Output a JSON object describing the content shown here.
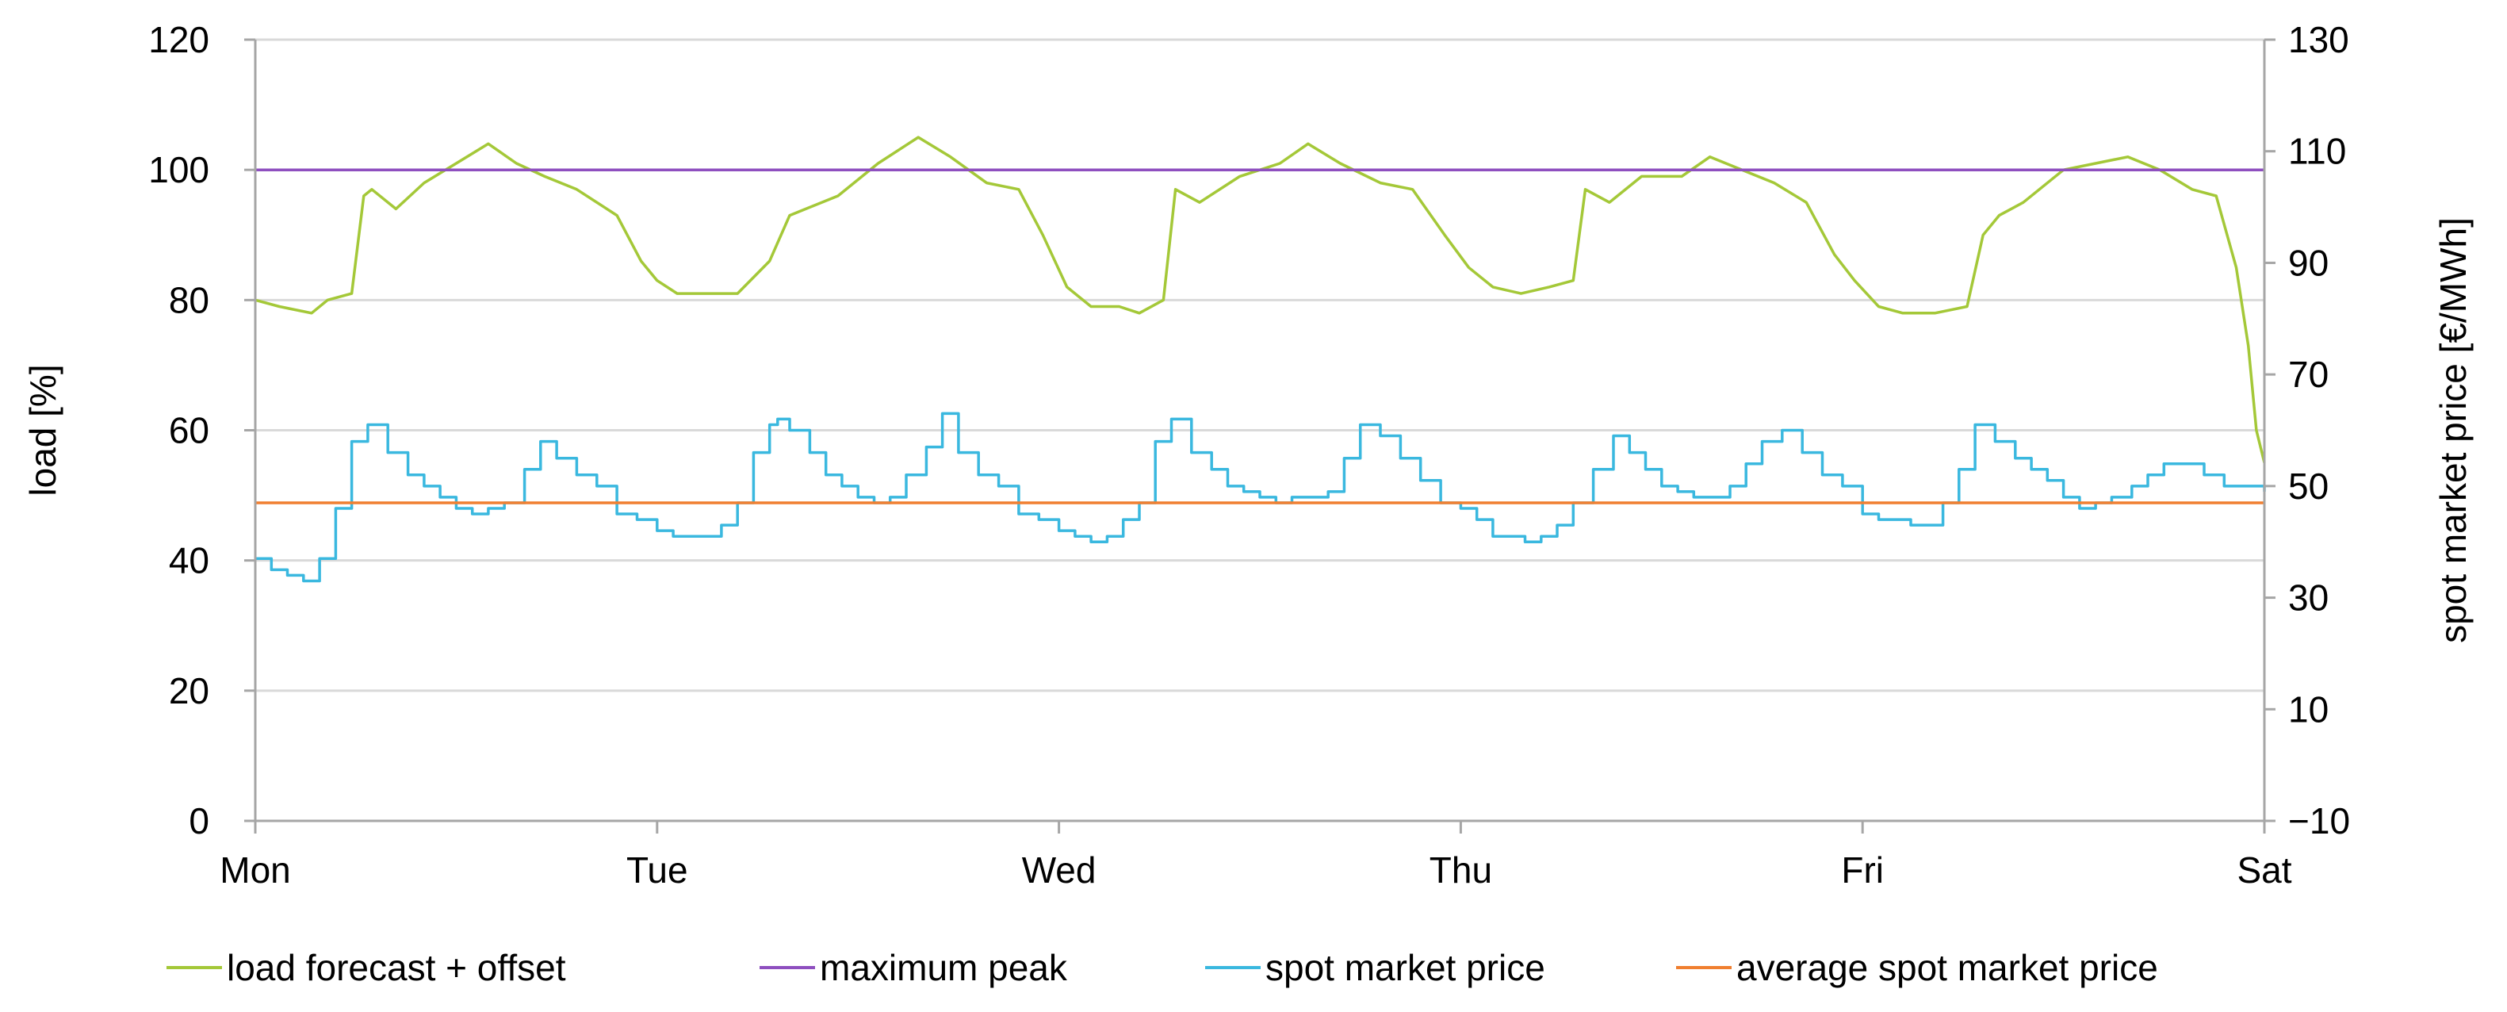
{
  "chart_data": {
    "type": "line",
    "title": "",
    "x_categories": [
      "Mon",
      "Tue",
      "Wed",
      "Thu",
      "Fri",
      "Sat"
    ],
    "x_domain": [
      0,
      5
    ],
    "y_left": {
      "label": "load [%]",
      "range": [
        0,
        120
      ],
      "ticks": [
        "0",
        "20",
        "40",
        "60",
        "80",
        "100",
        "120"
      ]
    },
    "y_right": {
      "label": "spot market price [€/MWh]",
      "range": [
        -10,
        130
      ],
      "ticks": [
        "−10",
        "10",
        "30",
        "50",
        "70",
        "90",
        "110",
        "130"
      ]
    },
    "grid": true,
    "legend_position": "bottom",
    "colors": {
      "load": "#a4c838",
      "peak": "#8e4fbf",
      "price": "#3ab8df",
      "avg": "#f07f30",
      "grid": "#d9d9d9",
      "axis": "#a6a6a6"
    },
    "series": [
      {
        "name": "load forecast + offset",
        "axis": "left",
        "color_key": "load",
        "x": [
          0,
          0.06,
          0.14,
          0.18,
          0.24,
          0.27,
          0.29,
          0.35,
          0.42,
          0.5,
          0.58,
          0.65,
          0.72,
          0.8,
          0.9,
          0.96,
          1.0,
          1.05,
          1.12,
          1.2,
          1.28,
          1.33,
          1.37,
          1.45,
          1.55,
          1.65,
          1.73,
          1.82,
          1.9,
          1.96,
          2.02,
          2.08,
          2.15,
          2.2,
          2.26,
          2.29,
          2.35,
          2.45,
          2.55,
          2.62,
          2.7,
          2.8,
          2.88,
          2.96,
          3.02,
          3.08,
          3.15,
          3.22,
          3.28,
          3.31,
          3.37,
          3.45,
          3.55,
          3.62,
          3.7,
          3.78,
          3.86,
          3.93,
          3.98,
          4.04,
          4.1,
          4.18,
          4.26,
          4.3,
          4.34,
          4.4,
          4.5,
          4.58,
          4.66,
          4.74,
          4.82,
          4.88,
          4.93,
          4.96,
          4.98,
          5.0
        ],
        "values": [
          80,
          79,
          78,
          80,
          81,
          96,
          97,
          94,
          98,
          101,
          104,
          101,
          99,
          97,
          93,
          86,
          83,
          81,
          81,
          81,
          86,
          93,
          94,
          96,
          101,
          105,
          102,
          98,
          97,
          90,
          82,
          79,
          79,
          78,
          80,
          97,
          95,
          99,
          101,
          104,
          101,
          98,
          97,
          90,
          85,
          82,
          81,
          82,
          83,
          97,
          95,
          99,
          99,
          102,
          100,
          98,
          95,
          87,
          83,
          79,
          78,
          78,
          79,
          90,
          93,
          95,
          100,
          101,
          102,
          100,
          97,
          96,
          85,
          73,
          60,
          55
        ]
      },
      {
        "name": "maximum peak",
        "axis": "left",
        "color_key": "peak",
        "x": [
          0,
          5
        ],
        "values": [
          100,
          100
        ]
      },
      {
        "name": "spot market price",
        "axis": "right",
        "color_key": "price",
        "step": true,
        "x": [
          0,
          0.04,
          0.08,
          0.12,
          0.16,
          0.2,
          0.24,
          0.28,
          0.33,
          0.38,
          0.42,
          0.46,
          0.5,
          0.54,
          0.58,
          0.62,
          0.67,
          0.71,
          0.75,
          0.8,
          0.85,
          0.9,
          0.95,
          1.0,
          1.04,
          1.08,
          1.12,
          1.16,
          1.2,
          1.24,
          1.28,
          1.3,
          1.33,
          1.38,
          1.42,
          1.46,
          1.5,
          1.54,
          1.58,
          1.62,
          1.67,
          1.71,
          1.75,
          1.8,
          1.85,
          1.9,
          1.95,
          2.0,
          2.04,
          2.08,
          2.12,
          2.16,
          2.2,
          2.24,
          2.28,
          2.33,
          2.38,
          2.42,
          2.46,
          2.5,
          2.54,
          2.58,
          2.62,
          2.67,
          2.71,
          2.75,
          2.8,
          2.85,
          2.9,
          2.95,
          3.0,
          3.04,
          3.08,
          3.12,
          3.16,
          3.2,
          3.24,
          3.28,
          3.33,
          3.38,
          3.42,
          3.46,
          3.5,
          3.54,
          3.58,
          3.62,
          3.67,
          3.71,
          3.75,
          3.8,
          3.85,
          3.9,
          3.95,
          4.0,
          4.04,
          4.08,
          4.12,
          4.16,
          4.2,
          4.24,
          4.28,
          4.33,
          4.38,
          4.42,
          4.46,
          4.5,
          4.54,
          4.58,
          4.62,
          4.67,
          4.71,
          4.75,
          4.8,
          4.85,
          4.9,
          4.95,
          5.0
        ],
        "values": [
          37,
          35,
          34,
          33,
          37,
          46,
          58,
          61,
          56,
          52,
          50,
          48,
          46,
          45,
          46,
          47,
          53,
          58,
          55,
          52,
          50,
          45,
          44,
          42,
          41,
          41,
          41,
          43,
          47,
          56,
          61,
          62,
          60,
          56,
          52,
          50,
          48,
          47,
          48,
          52,
          57,
          63,
          56,
          52,
          50,
          45,
          44,
          42,
          41,
          40,
          41,
          44,
          47,
          58,
          62,
          56,
          53,
          50,
          49,
          48,
          47,
          48,
          48,
          49,
          55,
          61,
          59,
          55,
          51,
          47,
          46,
          44,
          41,
          41,
          40,
          41,
          43,
          47,
          53,
          59,
          56,
          53,
          50,
          49,
          48,
          48,
          50,
          54,
          58,
          60,
          56,
          52,
          50,
          45,
          44,
          44,
          43,
          43,
          47,
          53,
          61,
          58,
          55,
          53,
          51,
          48,
          46,
          47,
          48,
          50,
          52,
          54,
          54,
          52,
          50,
          50,
          49
        ]
      },
      {
        "name": "average spot market price",
        "axis": "right",
        "color_key": "avg",
        "x": [
          0,
          5
        ],
        "values": [
          47,
          47
        ]
      }
    ]
  }
}
